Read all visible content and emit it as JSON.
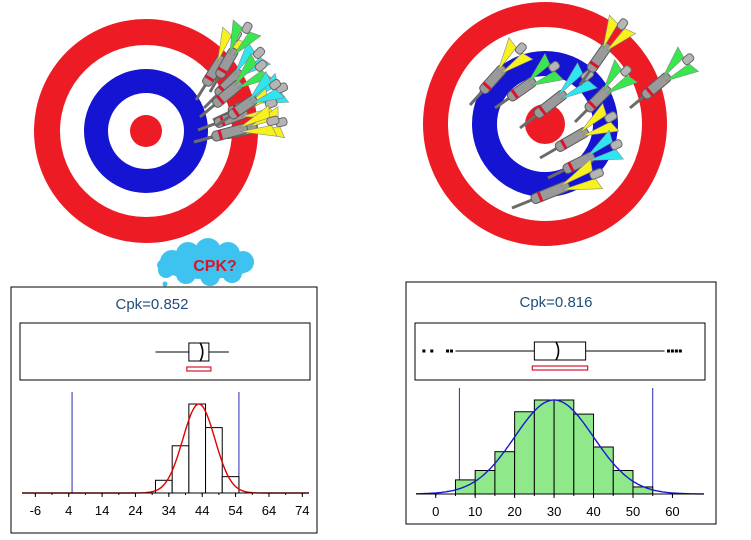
{
  "callout": {
    "text": "CPK?",
    "cloud_color": "#3ec3f0",
    "text_color": "#d9142c"
  },
  "targets": {
    "ring_colors": [
      "#ed1c24",
      "#ffffff",
      "#1414d2",
      "#ffffff",
      "#ed1c24"
    ],
    "fletching_colors": [
      "#f7f21e",
      "#39e64d",
      "#2ee6f0"
    ]
  },
  "chart_data": [
    {
      "type": "histogram",
      "title": "Cpk=0.852",
      "xticks": [
        -6,
        4,
        14,
        24,
        34,
        44,
        54,
        64,
        74
      ],
      "xlim": [
        -10,
        76
      ],
      "spec_limits": [
        5,
        55
      ],
      "bins": [
        {
          "x0": 30,
          "x1": 35,
          "value": 0.035
        },
        {
          "x0": 35,
          "x1": 40,
          "value": 0.13
        },
        {
          "x0": 40,
          "x1": 45,
          "value": 0.245
        },
        {
          "x0": 45,
          "x1": 50,
          "value": 0.18
        },
        {
          "x0": 50,
          "x1": 55,
          "value": 0.045
        }
      ],
      "bar_fill": "#ffffff",
      "curve": {
        "mean": 43,
        "sd": 4.8,
        "color": "#e00000"
      },
      "boxplot": {
        "q1": 40,
        "median": 44,
        "q3": 46,
        "whisker_low": 30,
        "whisker_high": 52,
        "outliers": []
      }
    },
    {
      "type": "histogram",
      "title": "Cpk=0.816",
      "xticks": [
        0,
        10,
        20,
        30,
        40,
        50,
        60
      ],
      "xlim": [
        -5,
        68
      ],
      "spec_limits": [
        6,
        55
      ],
      "bins": [
        {
          "x0": 5,
          "x1": 10,
          "value": 0.006
        },
        {
          "x0": 10,
          "x1": 15,
          "value": 0.01
        },
        {
          "x0": 15,
          "x1": 20,
          "value": 0.018
        },
        {
          "x0": 20,
          "x1": 25,
          "value": 0.035
        },
        {
          "x0": 25,
          "x1": 30,
          "value": 0.04
        },
        {
          "x0": 30,
          "x1": 35,
          "value": 0.04
        },
        {
          "x0": 35,
          "x1": 40,
          "value": 0.034
        },
        {
          "x0": 40,
          "x1": 45,
          "value": 0.02
        },
        {
          "x0": 45,
          "x1": 50,
          "value": 0.01
        },
        {
          "x0": 50,
          "x1": 55,
          "value": 0.003
        }
      ],
      "bar_fill": "#8fe98a",
      "curve": {
        "mean": 30,
        "sd": 10,
        "color": "#1a1ad0"
      },
      "boxplot": {
        "q1": 25,
        "median": 31,
        "q3": 38,
        "whisker_low": 5,
        "whisker_high": 58,
        "outliers": [
          -3,
          -1,
          3,
          4,
          59,
          60,
          61,
          62
        ]
      }
    }
  ]
}
